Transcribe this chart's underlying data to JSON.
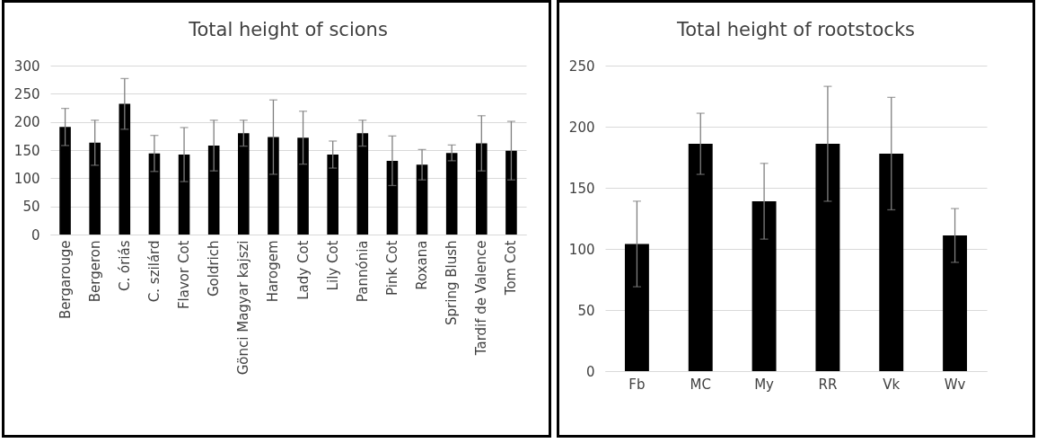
{
  "chart_data": [
    {
      "type": "bar",
      "title": "Total height of scions",
      "categories": [
        "Bergarouge",
        "Bergeron",
        "C. óriás",
        "C. szilárd",
        "Flavor Cot",
        "Goldrich",
        "Gönci Magyar kajszi",
        "Harogem",
        "Lady Cot",
        "Lily Cot",
        "Pannónia",
        "Pink Cot",
        "Roxana",
        "Spring Blush",
        "Tardif de Valence",
        "Tom Cot"
      ],
      "values": [
        191,
        163,
        232,
        144,
        142,
        158,
        180,
        173,
        172,
        142,
        180,
        131,
        124,
        145,
        162,
        149
      ],
      "errors": [
        33,
        40,
        45,
        32,
        48,
        45,
        23,
        66,
        47,
        24,
        23,
        44,
        27,
        14,
        49,
        52
      ],
      "color": "#000000",
      "ylim": [
        0,
        300
      ],
      "yticks": [
        0,
        50,
        100,
        150,
        200,
        250,
        300
      ],
      "grid": "y"
    },
    {
      "type": "bar",
      "title": "Total height of rootstocks",
      "categories": [
        "Fb",
        "MC",
        "My",
        "RR",
        "Vk",
        "Wv"
      ],
      "values": [
        104,
        186,
        139,
        186,
        178,
        111
      ],
      "errors": [
        35,
        25,
        31,
        47,
        46,
        22
      ],
      "color": "#000000",
      "ylim": [
        0,
        250
      ],
      "yticks": [
        0,
        50,
        100,
        150,
        200,
        250
      ],
      "grid": "y"
    }
  ]
}
